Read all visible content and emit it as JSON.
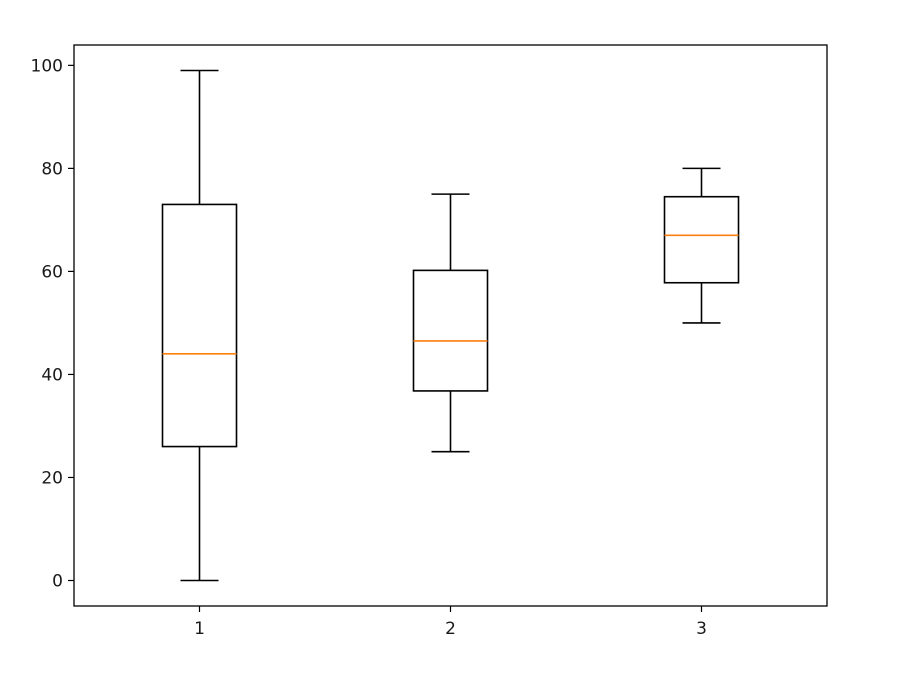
{
  "chart_data": {
    "type": "box",
    "title": "",
    "xlabel": "",
    "ylabel": "",
    "categories": [
      "1",
      "2",
      "3"
    ],
    "boxes": [
      {
        "category": "1",
        "whisker_low": 0,
        "q1": 26,
        "median": 44,
        "q3": 73,
        "whisker_high": 99
      },
      {
        "category": "2",
        "whisker_low": 25,
        "q1": 36.8,
        "median": 46.5,
        "q3": 60.2,
        "whisker_high": 75
      },
      {
        "category": "3",
        "whisker_low": 50,
        "q1": 57.8,
        "median": 67,
        "q3": 74.5,
        "whisker_high": 80
      }
    ],
    "y_ticks": [
      0,
      20,
      40,
      60,
      80,
      100
    ],
    "y_tick_labels": [
      "0",
      "20",
      "40",
      "60",
      "80",
      "100"
    ],
    "ylim": [
      -4.95,
      103.95
    ],
    "xlim": [
      0.5,
      3.5
    ],
    "grid": false,
    "legend": "none",
    "colors": {
      "box": "#000000",
      "median": "#ff7f0e",
      "text": "#1a1a1a"
    }
  }
}
